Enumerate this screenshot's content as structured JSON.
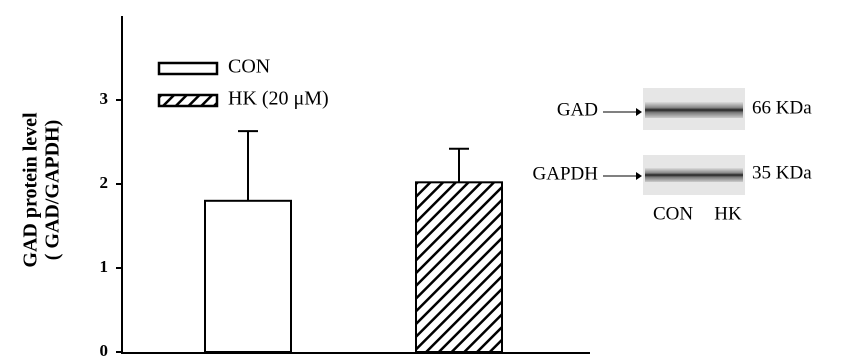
{
  "chart_data": {
    "type": "bar",
    "ylabel": [
      "GAD protein level",
      "( GAD/GAPDH)"
    ],
    "series": [
      {
        "name": "CON",
        "color": "#ffffff",
        "hatch": false,
        "values": [
          1.8
        ],
        "errors": [
          0.83
        ]
      },
      {
        "name": "HK  (20 μM)",
        "color": "#ffffff",
        "hatch": true,
        "values": [
          2.02
        ],
        "errors": [
          0.4
        ]
      }
    ],
    "ylim": [
      0,
      4
    ],
    "yticks": [
      0,
      1,
      2,
      3
    ],
    "grid": false,
    "inset": {
      "rows": [
        {
          "label": "GAD",
          "size": "66 KDa"
        },
        {
          "label": "GAPDH",
          "size": "35 KDa"
        }
      ],
      "lanes": [
        "CON",
        "HK"
      ]
    }
  }
}
